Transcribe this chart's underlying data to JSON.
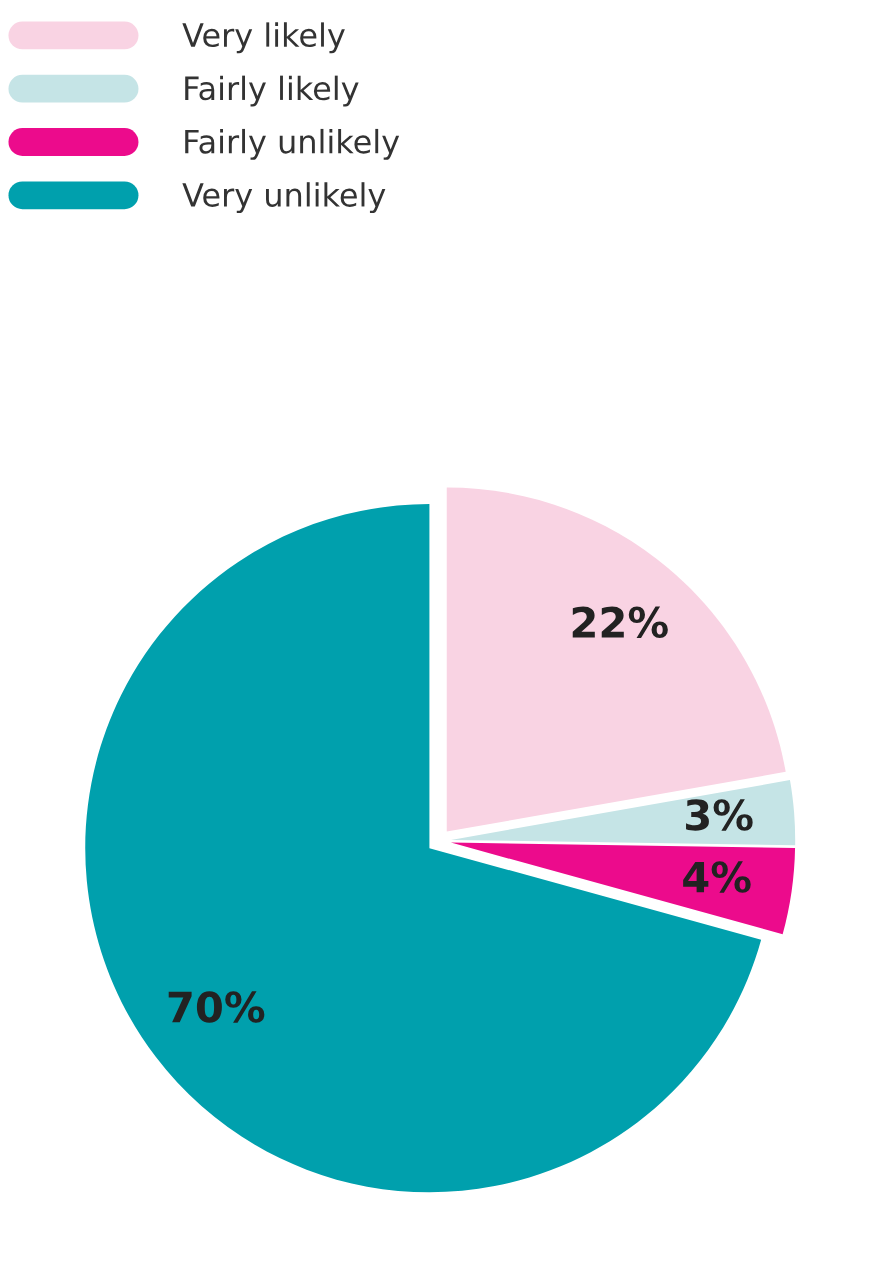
{
  "chart_data": {
    "type": "pie",
    "categories": [
      "Very likely",
      "Fairly likely",
      "Fairly unlikely",
      "Very unlikely"
    ],
    "values": [
      22,
      3,
      4,
      70
    ],
    "colors": [
      "#f9d3e3",
      "#c5e4e6",
      "#ec0b8c",
      "#00a0ad"
    ],
    "value_labels": [
      "22%",
      "3%",
      "4%",
      "70%"
    ],
    "legend": "top left"
  }
}
